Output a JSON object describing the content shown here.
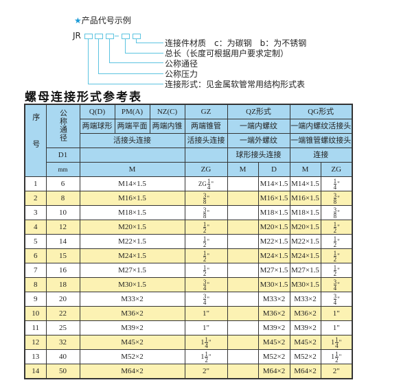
{
  "code_example": {
    "heading": "产品代号示例",
    "star_icon": "star",
    "prefix": "JR",
    "labels": [
      "连接件材质　c：为碳钢　b：为不锈钢",
      "总长（长度可根据用户要求定制）",
      "公称通径",
      "公称压力",
      "连接形式：见金属软管常用结构形式表"
    ]
  },
  "table_title": "螺母连接形式参考表",
  "header": {
    "seq": "序号",
    "nominal": "公称通径",
    "d1": "D1",
    "mm": "mm",
    "qd": "Q(D)",
    "pm": "PM(A)",
    "nz": "NZ(C)",
    "gz": "GZ",
    "qz": "QZ形式",
    "qg": "QG形式",
    "qd_desc": "两端球形",
    "pm_desc": "两端平面",
    "nz_desc": "两端内锥",
    "gz_desc": "两端锥管",
    "qz_desc1": "一端内螺纹",
    "qg_desc1": "一端内螺纹活接头",
    "union": "活接头连接",
    "gz_union": "活接头连接",
    "qz_desc2": "一端外螺纹",
    "qg_desc2": "一端锥管螺纹接头",
    "qz_desc3": "球形接头连接",
    "qg_desc3": "连接",
    "m": "M",
    "zg": "ZG",
    "qz_m": "M",
    "qz_d": "D",
    "qg_m": "M",
    "qg_zg": "ZG"
  },
  "rows": [
    {
      "no": "1",
      "dn": "6",
      "m": "M14×1.5",
      "zg": {
        "pre": "ZG",
        "num": "1",
        "den": "4",
        "suf": "\""
      },
      "qz_m": "",
      "qz_d": "M14×1.5",
      "qg_m": "M14×1.5",
      "qg_zg": {
        "pre": "",
        "num": "1",
        "den": "4",
        "suf": "\""
      }
    },
    {
      "no": "2",
      "dn": "8",
      "m": "M16×1.5",
      "zg": {
        "pre": "",
        "num": "3",
        "den": "8",
        "suf": "\""
      },
      "qz_m": "",
      "qz_d": "M16×1.5",
      "qg_m": "M16×1.5",
      "qg_zg": {
        "pre": "",
        "num": "3",
        "den": "8",
        "suf": "\""
      }
    },
    {
      "no": "3",
      "dn": "10",
      "m": "M18×1.5",
      "zg": {
        "pre": "",
        "num": "3",
        "den": "8",
        "suf": "\""
      },
      "qz_m": "",
      "qz_d": "M18×1.5",
      "qg_m": "M18×1.5",
      "qg_zg": {
        "pre": "",
        "num": "3",
        "den": "8",
        "suf": "\""
      }
    },
    {
      "no": "4",
      "dn": "12",
      "m": "M20×1.5",
      "zg": {
        "pre": "",
        "num": "1",
        "den": "2",
        "suf": "\""
      },
      "qz_m": "",
      "qz_d": "M20×1.5",
      "qg_m": "M20×1.5",
      "qg_zg": {
        "pre": "",
        "num": "1",
        "den": "2",
        "suf": "\""
      }
    },
    {
      "no": "5",
      "dn": "14",
      "m": "M22×1.5",
      "zg": {
        "pre": "",
        "num": "1",
        "den": "2",
        "suf": "\""
      },
      "qz_m": "",
      "qz_d": "M22×1.5",
      "qg_m": "M22×1.5",
      "qg_zg": {
        "pre": "",
        "num": "1",
        "den": "2",
        "suf": "\""
      }
    },
    {
      "no": "6",
      "dn": "15",
      "m": "M24×1.5",
      "zg": {
        "pre": "",
        "num": "1",
        "den": "2",
        "suf": "\""
      },
      "qz_m": "",
      "qz_d": "M24×1.5",
      "qg_m": "M24×1.5",
      "qg_zg": {
        "pre": "",
        "num": "1",
        "den": "2",
        "suf": "\""
      }
    },
    {
      "no": "7",
      "dn": "16",
      "m": "M27×1.5",
      "zg": {
        "pre": "",
        "num": "1",
        "den": "2",
        "suf": "\""
      },
      "qz_m": "",
      "qz_d": "M27×1.5",
      "qg_m": "M27×1.5",
      "qg_zg": {
        "pre": "",
        "num": "1",
        "den": "2",
        "suf": "\""
      }
    },
    {
      "no": "8",
      "dn": "18",
      "m": "M30×1.5",
      "zg": {
        "pre": "",
        "num": "3",
        "den": "4",
        "suf": "\""
      },
      "qz_m": "",
      "qz_d": "M30×1.5",
      "qg_m": "M30×1.5",
      "qg_zg": {
        "pre": "",
        "num": "3",
        "den": "4",
        "suf": "\""
      }
    },
    {
      "no": "9",
      "dn": "20",
      "m": "M33×2",
      "zg": {
        "pre": "",
        "num": "3",
        "den": "4",
        "suf": "\""
      },
      "qz_m": "",
      "qz_d": "M33×2",
      "qg_m": "M33×2",
      "qg_zg": {
        "pre": "",
        "num": "3",
        "den": "4",
        "suf": "\""
      }
    },
    {
      "no": "10",
      "dn": "22",
      "m": "M36×2",
      "zg": {
        "text": "1\""
      },
      "qz_m": "",
      "qz_d": "M36×2",
      "qg_m": "M36×2",
      "qg_zg": {
        "text": "1\""
      }
    },
    {
      "no": "11",
      "dn": "25",
      "m": "M39×2",
      "zg": {
        "text": "1\""
      },
      "qz_m": "",
      "qz_d": "M39×2",
      "qg_m": "M39×2",
      "qg_zg": {
        "text": "1\""
      }
    },
    {
      "no": "12",
      "dn": "32",
      "m": "M45×2",
      "zg": {
        "pre": "1",
        "num": "1",
        "den": "4",
        "suf": "\""
      },
      "qz_m": "",
      "qz_d": "M45×2",
      "qg_m": "M45×2",
      "qg_zg": {
        "pre": "1",
        "num": "1",
        "den": "4",
        "suf": "\""
      }
    },
    {
      "no": "13",
      "dn": "40",
      "m": "M52×2",
      "zg": {
        "pre": "1",
        "num": "1",
        "den": "2",
        "suf": "\""
      },
      "qz_m": "",
      "qz_d": "M52×2",
      "qg_m": "M52×2",
      "qg_zg": {
        "pre": "1",
        "num": "1",
        "den": "2",
        "suf": "\""
      }
    },
    {
      "no": "14",
      "dn": "50",
      "m": "M64×2",
      "zg": {
        "text": "2\""
      },
      "qz_m": "",
      "qz_d": "M64×2",
      "qg_m": "M64×2",
      "qg_zg": {
        "text": "2\""
      }
    }
  ],
  "colors": {
    "header_bg": "#a9d8f1",
    "alt_row_bg": "#fcf2b3",
    "accent": "#5bc3e0"
  }
}
